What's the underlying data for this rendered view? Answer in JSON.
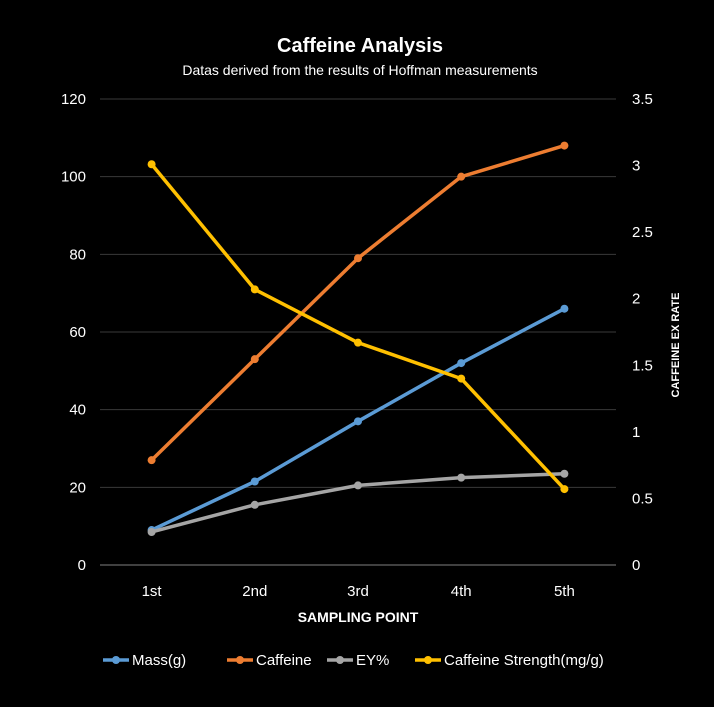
{
  "chart_data": {
    "type": "line",
    "title": "Caffeine Analysis",
    "subtitle": "Datas derived from the results of Hoffman measurements",
    "xlabel": "SAMPLING POINT",
    "ylabel": "",
    "y2label": "CAFFEINE EX RATE",
    "categories": [
      "1st",
      "2nd",
      "3rd",
      "4th",
      "5th"
    ],
    "ylim": [
      0,
      120
    ],
    "y_ticks": [
      0,
      20,
      40,
      60,
      80,
      100,
      120
    ],
    "y_tick_labels": [
      "0",
      "20",
      "40",
      "60",
      "80",
      "100",
      "120"
    ],
    "y2lim": [
      0,
      3.5
    ],
    "y2_ticks": [
      0,
      0.5,
      1,
      1.5,
      2,
      2.5,
      3,
      3.5
    ],
    "y2_tick_labels": [
      "0",
      "0.5",
      "1",
      "1.5",
      "2",
      "2.5",
      "3",
      "3.5"
    ],
    "grid": true,
    "legend_position": "bottom",
    "series": [
      {
        "name": "Mass(g)",
        "axis": "left",
        "color": "#5b9bd5",
        "values": [
          9,
          21.5,
          37,
          52,
          66
        ]
      },
      {
        "name": "Caffeine",
        "axis": "left",
        "color": "#ed7d31",
        "values": [
          27,
          53,
          79,
          100,
          108
        ]
      },
      {
        "name": "EY%",
        "axis": "left",
        "color": "#a5a5a5",
        "values": [
          8.5,
          15.5,
          20.5,
          22.5,
          23.5
        ]
      },
      {
        "name": "Caffeine Strength(mg/g)",
        "axis": "right",
        "color": "#ffc000",
        "values": [
          3.01,
          2.07,
          1.67,
          1.4,
          0.57
        ]
      }
    ]
  }
}
